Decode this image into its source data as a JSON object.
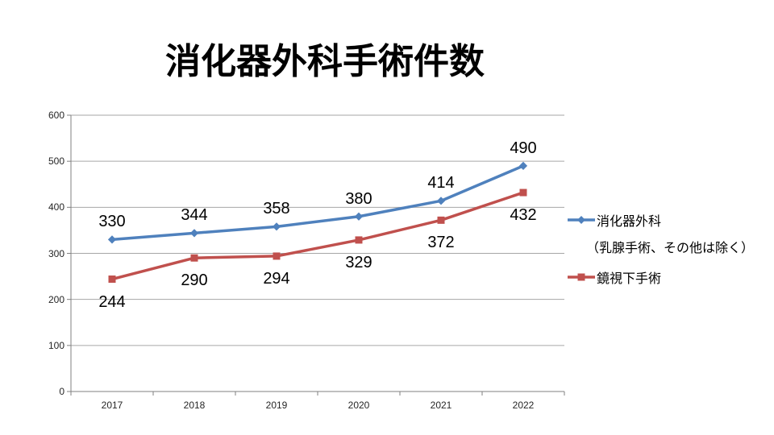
{
  "title": "消化器外科手術件数",
  "chart_data": {
    "type": "line",
    "categories": [
      "2017",
      "2018",
      "2019",
      "2020",
      "2021",
      "2022"
    ],
    "series": [
      {
        "name": "消化器外科",
        "note": "（乳腺手術、その他は除く）",
        "values": [
          330,
          344,
          358,
          380,
          414,
          490
        ],
        "color": "#4F81BD",
        "marker": "diamond",
        "label_position": "above"
      },
      {
        "name": "鏡視下手術",
        "values": [
          244,
          290,
          294,
          329,
          372,
          432
        ],
        "color": "#C0504D",
        "marker": "square",
        "label_position": "below"
      }
    ],
    "ylim": [
      0,
      600
    ],
    "ytick_step": 100,
    "grid": true,
    "legend_position": "right",
    "xlabel": "",
    "ylabel": ""
  },
  "colors": {
    "grid": "#A6A6A6",
    "axis": "#808080",
    "text": "#262626",
    "label": "#000000"
  }
}
